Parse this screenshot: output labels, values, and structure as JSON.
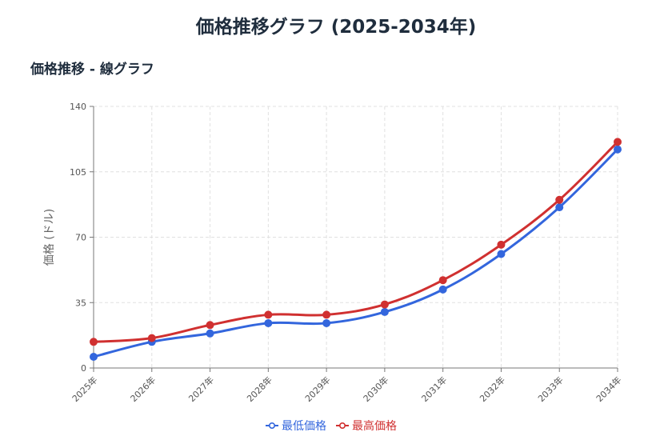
{
  "page": {
    "title": "価格推移グラフ (2025-2034年)",
    "section_title": "価格推移 - 線グラフ"
  },
  "chart_data": {
    "type": "line",
    "x": [
      "2025年",
      "2026年",
      "2027年",
      "2028年",
      "2029年",
      "2030年",
      "2031年",
      "2032年",
      "2033年",
      "2034年"
    ],
    "series": [
      {
        "name": "最低価格",
        "color": "#3366dd",
        "values": [
          6,
          14,
          18.5,
          24,
          24,
          30,
          42,
          61,
          86,
          117
        ]
      },
      {
        "name": "最高価格",
        "color": "#d03030",
        "values": [
          14,
          16,
          23,
          28.5,
          28.5,
          34,
          47,
          66,
          90,
          121
        ]
      }
    ],
    "ylabel": "価格 (ドル)",
    "xlabel": "",
    "ylim": [
      0,
      140
    ],
    "yticks": [
      0,
      35,
      70,
      105,
      140
    ],
    "grid": true,
    "legend": "bottom-center"
  }
}
